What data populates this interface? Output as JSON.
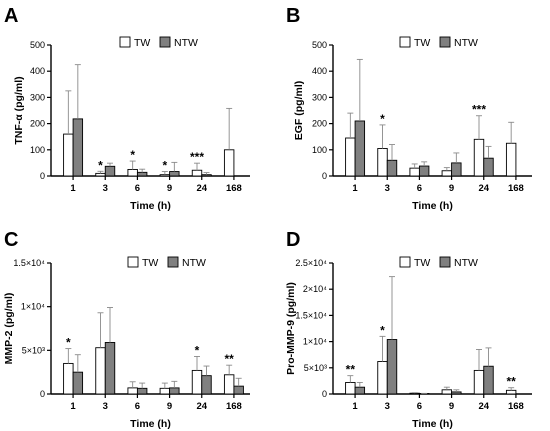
{
  "colors": {
    "tw": "#ffffff",
    "ntw": "#808080",
    "axis": "#000000",
    "error": "#8a8a8a"
  },
  "chart_data": [
    {
      "type": "bar",
      "panel": "A",
      "ylabel": "TNF-α (pg/ml)",
      "xlabel": "Time (h)",
      "categories": [
        "1",
        "3",
        "6",
        "9",
        "24",
        "168"
      ],
      "ylim": [
        0,
        500
      ],
      "yticks": [
        0,
        100,
        200,
        300,
        400,
        500
      ],
      "ytick_labels": [
        "0",
        "100",
        "200",
        "300",
        "400",
        "500"
      ],
      "legend": [
        "TW",
        "NTW"
      ],
      "legend_position": "top-right",
      "series": [
        {
          "name": "TW",
          "values": [
            160,
            10,
            25,
            5,
            22,
            100
          ],
          "errors": [
            165,
            8,
            32,
            12,
            27,
            158
          ]
        },
        {
          "name": "NTW",
          "values": [
            218,
            37,
            14,
            17,
            5,
            null
          ],
          "errors": [
            207,
            12,
            12,
            35,
            8,
            null
          ]
        }
      ],
      "significance": [
        "",
        "*",
        "*",
        "*",
        "***",
        ""
      ]
    },
    {
      "type": "bar",
      "panel": "B",
      "ylabel": "EGF (pg/ml)",
      "xlabel": "Time (h)",
      "categories": [
        "1",
        "3",
        "6",
        "9",
        "24",
        "168"
      ],
      "ylim": [
        0,
        500
      ],
      "yticks": [
        0,
        100,
        200,
        300,
        400,
        500
      ],
      "ytick_labels": [
        "0",
        "100",
        "200",
        "300",
        "400",
        "500"
      ],
      "legend": [
        "TW",
        "NTW"
      ],
      "legend_position": "top-right",
      "series": [
        {
          "name": "TW",
          "values": [
            145,
            105,
            30,
            20,
            140,
            125
          ],
          "errors": [
            95,
            90,
            16,
            12,
            90,
            80
          ]
        },
        {
          "name": "NTW",
          "values": [
            210,
            60,
            38,
            50,
            68,
            null
          ],
          "errors": [
            235,
            60,
            16,
            38,
            45,
            null
          ]
        }
      ],
      "significance": [
        "",
        "*",
        "",
        "",
        "***",
        ""
      ]
    },
    {
      "type": "bar",
      "panel": "C",
      "ylabel": "MMP-2 (pg/ml)",
      "xlabel": "Time (h)",
      "categories": [
        "1",
        "3",
        "6",
        "9",
        "24",
        "168"
      ],
      "ylim": [
        0,
        15000
      ],
      "yticks": [
        0,
        5000,
        10000,
        15000
      ],
      "ytick_labels": [
        "0",
        "5×10³",
        "1×10⁴",
        "1.5×10⁴"
      ],
      "legend": [
        "TW",
        "NTW"
      ],
      "legend_position": "top-right",
      "series": [
        {
          "name": "TW",
          "values": [
            3500,
            5300,
            700,
            650,
            2700,
            2200
          ],
          "errors": [
            1700,
            4000,
            700,
            600,
            1600,
            1100
          ]
        },
        {
          "name": "NTW",
          "values": [
            2500,
            5900,
            650,
            700,
            2100,
            900
          ],
          "errors": [
            2000,
            4000,
            600,
            750,
            1100,
            900
          ]
        }
      ],
      "significance": [
        "*",
        "",
        "",
        "",
        "*",
        "**"
      ]
    },
    {
      "type": "bar",
      "panel": "D",
      "ylabel": "Pro-MMP-9 (pg/ml)",
      "xlabel": "Time (h)",
      "categories": [
        "1",
        "3",
        "6",
        "9",
        "24",
        "168"
      ],
      "ylim": [
        0,
        25000
      ],
      "yticks": [
        0,
        5000,
        10000,
        15000,
        20000,
        25000
      ],
      "ytick_labels": [
        "0",
        "5×10³",
        "1×10⁴",
        "1.5×10⁴",
        "2×10⁴",
        "2.5×10⁴"
      ],
      "legend": [
        "TW",
        "NTW"
      ],
      "legend_position": "top-right",
      "series": [
        {
          "name": "TW",
          "values": [
            2200,
            6200,
            150,
            800,
            4500,
            700
          ],
          "errors": [
            1300,
            4800,
            100,
            500,
            4000,
            500
          ]
        },
        {
          "name": "NTW",
          "values": [
            1300,
            10400,
            60,
            400,
            5300,
            null
          ],
          "errors": [
            900,
            12000,
            60,
            400,
            3500,
            null
          ]
        }
      ],
      "significance": [
        "**",
        "*",
        "",
        "",
        "",
        "**"
      ]
    }
  ]
}
